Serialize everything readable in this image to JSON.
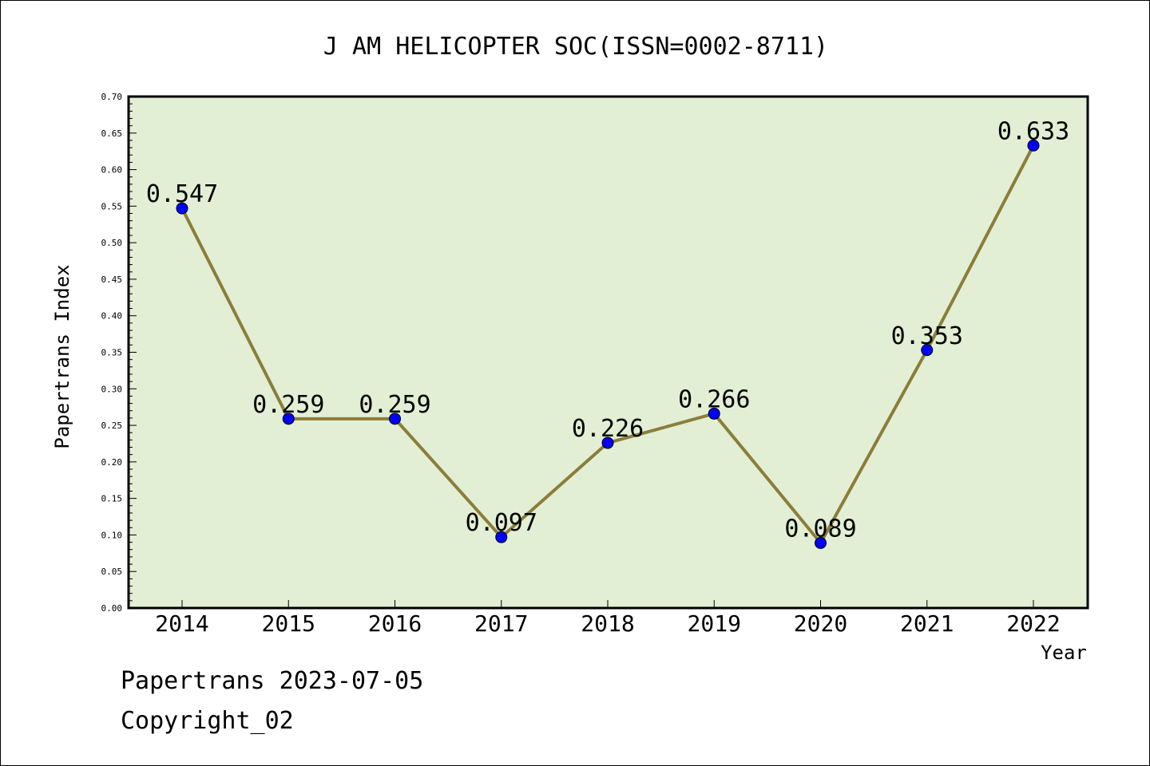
{
  "chart_data": {
    "type": "line",
    "title": "J AM HELICOPTER SOC(ISSN=0002-8711)",
    "xlabel": "Year",
    "ylabel": "Papertrans Index",
    "categories": [
      "2014",
      "2015",
      "2016",
      "2017",
      "2018",
      "2019",
      "2020",
      "2021",
      "2022"
    ],
    "series": [
      {
        "values": [
          0.547,
          0.259,
          0.259,
          0.097,
          0.226,
          0.266,
          0.089,
          0.353,
          0.633
        ],
        "labels": [
          "0.547",
          "0.259",
          "0.259",
          "0.097",
          "0.226",
          "0.266",
          "0.089",
          "0.353",
          "0.633"
        ],
        "line_color": "#8B7D3A",
        "marker_color": "#0000FF"
      }
    ],
    "ylim": [
      0,
      0.7
    ],
    "yticks": [
      "0.00",
      "0.05",
      "0.10",
      "0.15",
      "0.20",
      "0.25",
      "0.30",
      "0.35",
      "0.40",
      "0.45",
      "0.50",
      "0.55",
      "0.60",
      "0.65",
      "0.70"
    ],
    "plot_background": "#E2EFD4",
    "grid": false,
    "legend": "none"
  },
  "footer": {
    "date_line": "Papertrans 2023-07-05",
    "copyright_line": "Copyright_02"
  }
}
